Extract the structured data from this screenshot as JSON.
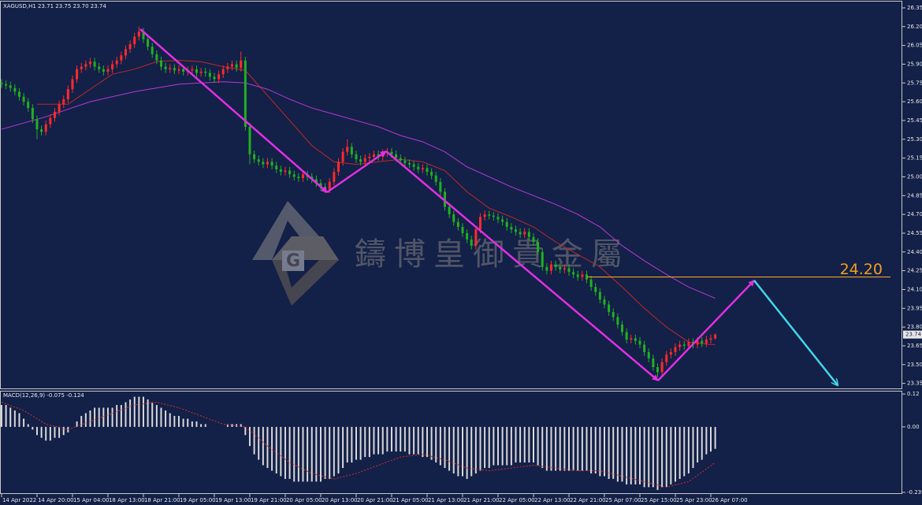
{
  "chart_data": [
    {
      "type": "candlestick",
      "title": "XAGUSD,H1  23.71 23.75 23.70 23.74",
      "watermark": "鑄博皇御貴金屬",
      "xlim": [
        -0.35,
        203.2
      ],
      "ylim": [
        23.31,
        26.4
      ],
      "yticks": [
        26.35,
        {
          "value": 26.2,
          "label": "26.20"
        },
        26.05,
        {
          "value": 25.9,
          "label": "25.90"
        },
        25.75,
        {
          "value": 25.6,
          "label": "25.60"
        },
        25.45,
        {
          "value": 25.3,
          "label": "25.30"
        },
        25.15,
        {
          "value": 25.0,
          "label": "25.00"
        },
        24.85,
        {
          "value": 24.7,
          "label": "24.70"
        },
        24.55,
        {
          "value": 24.4,
          "label": "24.40"
        },
        24.25,
        {
          "value": 24.1,
          "label": "24.10"
        },
        23.95,
        {
          "value": 23.8,
          "label": "23.80"
        },
        23.65,
        {
          "value": 23.5,
          "label": "23.50"
        },
        23.35
      ],
      "up_color": "#ff2a2a",
      "down_color": "#20b020",
      "open": [
        25.75,
        25.74,
        25.73,
        25.71,
        25.68,
        25.64,
        25.6,
        25.55,
        25.46,
        25.38,
        25.36,
        25.42,
        25.47,
        25.52,
        25.58,
        25.62,
        25.7,
        25.78,
        25.86,
        25.88,
        25.9,
        25.92,
        25.88,
        25.86,
        25.84,
        25.86,
        25.9,
        25.93,
        25.97,
        26.02,
        26.06,
        26.12,
        26.16,
        26.1,
        26.04,
        25.98,
        25.93,
        25.88,
        25.86,
        25.87,
        25.85,
        25.86,
        25.84,
        25.85,
        25.86,
        25.83,
        25.84,
        25.83,
        25.8,
        25.78,
        25.82,
        25.86,
        25.88,
        25.9,
        25.87,
        25.93,
        25.4,
        25.18,
        25.14,
        25.12,
        25.1,
        25.12,
        25.09,
        25.06,
        25.04,
        25.05,
        25.02,
        25.0,
        24.99,
        25.02,
        25.0,
        24.98,
        24.95,
        24.92,
        24.9,
        24.96,
        25.04,
        25.12,
        25.2,
        25.24,
        25.18,
        25.14,
        25.12,
        25.15,
        25.16,
        25.18,
        25.16,
        25.19,
        25.2,
        25.18,
        25.15,
        25.13,
        25.11,
        25.1,
        25.08,
        25.06,
        25.07,
        25.04,
        25.01,
        24.96,
        24.88,
        24.76,
        24.7,
        24.64,
        24.6,
        24.55,
        24.5,
        24.45,
        24.58,
        24.68,
        24.7,
        24.69,
        24.68,
        24.66,
        24.64,
        24.6,
        24.58,
        24.56,
        24.54,
        24.56,
        24.52,
        24.48,
        24.4,
        24.28,
        24.25,
        24.3,
        24.28,
        24.26,
        24.27,
        24.24,
        24.22,
        24.2,
        24.22,
        24.18,
        24.12,
        24.08,
        24.02,
        23.98,
        23.92,
        23.88,
        23.82,
        23.76,
        23.7,
        23.71,
        23.69,
        23.66,
        23.6,
        23.55,
        23.48,
        23.44,
        23.52,
        23.58,
        23.6,
        23.64,
        23.66,
        23.65,
        23.68,
        23.66,
        23.69,
        23.67,
        23.7,
        23.71
      ],
      "high": [
        25.78,
        25.77,
        25.76,
        25.74,
        25.71,
        25.67,
        25.63,
        25.58,
        25.49,
        25.41,
        25.45,
        25.5,
        25.55,
        25.61,
        25.65,
        25.73,
        25.81,
        25.89,
        25.91,
        25.93,
        25.95,
        25.95,
        25.91,
        25.89,
        25.89,
        25.93,
        25.96,
        26.0,
        26.05,
        26.09,
        26.15,
        26.2,
        26.19,
        26.13,
        26.07,
        26.01,
        25.96,
        25.91,
        25.9,
        25.9,
        25.89,
        25.89,
        25.88,
        25.89,
        25.89,
        25.87,
        25.87,
        25.86,
        25.83,
        25.85,
        25.89,
        25.91,
        25.93,
        25.93,
        26.0,
        25.96,
        25.43,
        25.21,
        25.17,
        25.15,
        25.15,
        25.15,
        25.12,
        25.09,
        25.08,
        25.08,
        25.05,
        25.03,
        25.05,
        25.05,
        25.03,
        25.01,
        24.98,
        24.95,
        24.99,
        25.07,
        25.15,
        25.23,
        25.3,
        25.27,
        25.21,
        25.17,
        25.18,
        25.19,
        25.21,
        25.21,
        25.22,
        25.23,
        25.23,
        25.21,
        25.18,
        25.16,
        25.14,
        25.13,
        25.11,
        25.1,
        25.1,
        25.07,
        25.04,
        24.99,
        24.91,
        24.79,
        24.73,
        24.67,
        24.63,
        24.58,
        24.53,
        24.61,
        24.71,
        24.73,
        24.73,
        24.72,
        24.71,
        24.69,
        24.67,
        24.63,
        24.61,
        24.59,
        24.59,
        24.59,
        24.55,
        24.51,
        24.43,
        24.31,
        24.33,
        24.33,
        24.31,
        24.3,
        24.3,
        24.27,
        24.25,
        24.25,
        24.25,
        24.21,
        24.15,
        24.11,
        24.05,
        24.01,
        23.95,
        23.91,
        23.85,
        23.79,
        23.74,
        23.74,
        23.72,
        23.69,
        23.63,
        23.58,
        23.51,
        23.55,
        23.61,
        23.63,
        23.67,
        23.69,
        23.69,
        23.71,
        23.71,
        23.72,
        23.72,
        23.73,
        23.74,
        23.75
      ],
      "low": [
        25.71,
        25.7,
        25.68,
        25.65,
        25.61,
        25.57,
        25.52,
        25.43,
        25.3,
        25.33,
        25.33,
        25.39,
        25.44,
        25.49,
        25.55,
        25.59,
        25.67,
        25.75,
        25.83,
        25.85,
        25.87,
        25.85,
        25.83,
        25.81,
        25.81,
        25.83,
        25.87,
        25.9,
        25.94,
        25.99,
        26.03,
        26.09,
        26.07,
        26.01,
        25.95,
        25.9,
        25.85,
        25.83,
        25.83,
        25.82,
        25.82,
        25.81,
        25.81,
        25.82,
        25.8,
        25.8,
        25.8,
        25.77,
        25.75,
        25.75,
        25.79,
        25.83,
        25.85,
        25.84,
        25.84,
        25.37,
        25.1,
        25.11,
        25.09,
        25.07,
        25.07,
        25.06,
        25.03,
        25.01,
        25.01,
        24.99,
        24.97,
        24.96,
        24.96,
        24.97,
        24.95,
        24.92,
        24.89,
        24.87,
        24.87,
        24.93,
        25.01,
        25.09,
        25.17,
        25.15,
        25.11,
        25.09,
        25.09,
        25.12,
        25.13,
        25.13,
        25.13,
        25.16,
        25.15,
        25.12,
        25.1,
        25.08,
        25.07,
        25.05,
        25.03,
        25.03,
        25.01,
        24.98,
        24.93,
        24.85,
        24.73,
        24.67,
        24.61,
        24.57,
        24.52,
        24.47,
        24.42,
        24.42,
        24.55,
        24.65,
        24.66,
        24.65,
        24.63,
        24.61,
        24.57,
        24.55,
        24.53,
        24.51,
        24.51,
        24.49,
        24.45,
        24.37,
        24.25,
        24.22,
        24.22,
        24.25,
        24.23,
        24.23,
        24.21,
        24.19,
        24.17,
        24.17,
        24.15,
        24.09,
        24.05,
        23.99,
        23.95,
        23.89,
        23.85,
        23.79,
        23.73,
        23.67,
        23.67,
        23.66,
        23.63,
        23.57,
        23.52,
        23.45,
        23.4,
        23.41,
        23.49,
        23.55,
        23.57,
        23.61,
        23.62,
        23.62,
        23.63,
        23.63,
        23.64,
        23.64,
        23.67,
        23.7
      ],
      "close": [
        25.74,
        25.73,
        25.71,
        25.68,
        25.64,
        25.6,
        25.55,
        25.46,
        25.38,
        25.36,
        25.42,
        25.47,
        25.52,
        25.58,
        25.62,
        25.7,
        25.78,
        25.86,
        25.88,
        25.9,
        25.92,
        25.88,
        25.86,
        25.84,
        25.86,
        25.9,
        25.93,
        25.97,
        26.02,
        26.06,
        26.12,
        26.16,
        26.1,
        26.04,
        25.98,
        25.93,
        25.88,
        25.86,
        25.87,
        25.85,
        25.86,
        25.84,
        25.85,
        25.86,
        25.83,
        25.84,
        25.83,
        25.8,
        25.78,
        25.82,
        25.86,
        25.88,
        25.9,
        25.87,
        25.93,
        25.4,
        25.18,
        25.14,
        25.12,
        25.1,
        25.12,
        25.09,
        25.06,
        25.04,
        25.05,
        25.02,
        25.0,
        24.99,
        25.02,
        25.0,
        24.98,
        24.95,
        24.92,
        24.9,
        24.96,
        25.04,
        25.12,
        25.2,
        25.24,
        25.18,
        25.14,
        25.12,
        25.15,
        25.16,
        25.18,
        25.16,
        25.19,
        25.2,
        25.18,
        25.15,
        25.13,
        25.11,
        25.1,
        25.08,
        25.06,
        25.07,
        25.04,
        25.01,
        24.96,
        24.88,
        24.76,
        24.7,
        24.64,
        24.6,
        24.55,
        24.5,
        24.45,
        24.58,
        24.68,
        24.7,
        24.69,
        24.68,
        24.66,
        24.64,
        24.6,
        24.58,
        24.56,
        24.54,
        24.56,
        24.52,
        24.48,
        24.4,
        24.28,
        24.25,
        24.3,
        24.28,
        24.26,
        24.27,
        24.24,
        24.22,
        24.2,
        24.22,
        24.18,
        24.12,
        24.08,
        24.02,
        23.98,
        23.92,
        23.88,
        23.82,
        23.76,
        23.7,
        23.71,
        23.69,
        23.66,
        23.6,
        23.55,
        23.48,
        23.44,
        23.52,
        23.58,
        23.6,
        23.64,
        23.66,
        23.65,
        23.68,
        23.66,
        23.69,
        23.67,
        23.7,
        23.71,
        23.74
      ],
      "lines": [
        {
          "color": "#c02828",
          "x": [
            8,
            15,
            20,
            25,
            30,
            35,
            40,
            45,
            50,
            55,
            60,
            65,
            70,
            75,
            80,
            85,
            90,
            95,
            100,
            105,
            110,
            115,
            120,
            125,
            130,
            135,
            140,
            145,
            150,
            155,
            160,
            161
          ],
          "values": [
            25.58,
            25.58,
            25.7,
            25.82,
            25.86,
            25.92,
            25.93,
            25.92,
            25.88,
            25.85,
            25.65,
            25.45,
            25.25,
            25.12,
            25.1,
            25.12,
            25.14,
            25.12,
            25.05,
            24.88,
            24.75,
            24.68,
            24.6,
            24.48,
            24.38,
            24.28,
            24.12,
            23.95,
            23.8,
            23.68,
            23.66,
            23.66
          ]
        },
        {
          "color": "#b63ad0",
          "x": [
            0,
            10,
            20,
            30,
            40,
            50,
            55,
            60,
            65,
            70,
            75,
            80,
            85,
            90,
            95,
            100,
            105,
            110,
            115,
            120,
            125,
            130,
            135,
            140,
            145,
            150,
            155,
            161
          ],
          "values": [
            25.38,
            25.48,
            25.6,
            25.68,
            25.74,
            25.76,
            25.75,
            25.7,
            25.62,
            25.55,
            25.5,
            25.45,
            25.4,
            25.33,
            25.28,
            25.2,
            25.08,
            25.0,
            24.92,
            24.85,
            24.78,
            24.7,
            24.6,
            24.45,
            24.33,
            24.22,
            24.12,
            24.03
          ]
        }
      ],
      "level": {
        "value": 24.2,
        "label": "24.20",
        "color": "#f0a020"
      },
      "last_price": 23.74
    },
    {
      "type": "macd",
      "title": "MACD(12,26,9) -0.075 -0.124",
      "xlim": [
        -0.35,
        203.2
      ],
      "ylim": [
        -0.242,
        0.129
      ],
      "yticks": [
        0.12,
        {
          "value": 0,
          "label": "0.00"
        },
        -0.239
      ],
      "xticks": [
        {
          "value": 0,
          "label": "14 Apr 2022"
        },
        {
          "value": 8,
          "label": "14 Apr 20:00"
        },
        {
          "value": 16,
          "label": "15 Apr 04:00"
        },
        {
          "value": 24,
          "label": "18 Apr 13:00"
        },
        {
          "value": 32,
          "label": "18 Apr 21:00"
        },
        {
          "value": 40,
          "label": "19 Apr 05:00"
        },
        {
          "value": 48,
          "label": "19 Apr 13:00"
        },
        {
          "value": 56,
          "label": "19 Apr 21:00"
        },
        {
          "value": 64,
          "label": "20 Apr 05:00"
        },
        {
          "value": 72,
          "label": "20 Apr 13:00"
        },
        {
          "value": 80,
          "label": "20 Apr 21:00"
        },
        {
          "value": 88,
          "label": "21 Apr 05:00"
        },
        {
          "value": 96,
          "label": "21 Apr 13:00"
        },
        {
          "value": 104,
          "label": "21 Apr 21:00"
        },
        {
          "value": 112,
          "label": "22 Apr 05:00"
        },
        {
          "value": 120,
          "label": "22 Apr 13:00"
        },
        {
          "value": 128,
          "label": "22 Apr 21:00"
        },
        {
          "value": 136,
          "label": "25 Apr 07:00"
        },
        {
          "value": 144,
          "label": "25 Apr 15:00"
        },
        {
          "value": 152,
          "label": "25 Apr 23:00"
        },
        {
          "value": 160,
          "label": "26 Apr 07:00"
        }
      ],
      "color": "#d8d8d8",
      "values": [
        0.08,
        0.08,
        0.07,
        0.06,
        0.05,
        0.03,
        0.01,
        -0.01,
        -0.03,
        -0.04,
        -0.05,
        -0.05,
        -0.04,
        -0.04,
        -0.03,
        -0.02,
        0.0,
        0.02,
        0.04,
        0.05,
        0.06,
        0.07,
        0.07,
        0.07,
        0.07,
        0.07,
        0.08,
        0.08,
        0.09,
        0.1,
        0.11,
        0.11,
        0.11,
        0.1,
        0.09,
        0.08,
        0.07,
        0.06,
        0.05,
        0.04,
        0.04,
        0.03,
        0.03,
        0.02,
        0.02,
        0.01,
        0.01,
        0.0,
        0.0,
        0.0,
        0.0,
        0.01,
        0.01,
        0.01,
        0.01,
        -0.03,
        -0.07,
        -0.1,
        -0.12,
        -0.14,
        -0.15,
        -0.16,
        -0.17,
        -0.18,
        -0.19,
        -0.19,
        -0.2,
        -0.2,
        -0.2,
        -0.2,
        -0.2,
        -0.2,
        -0.2,
        -0.19,
        -0.19,
        -0.18,
        -0.17,
        -0.15,
        -0.13,
        -0.13,
        -0.12,
        -0.12,
        -0.11,
        -0.11,
        -0.1,
        -0.1,
        -0.1,
        -0.09,
        -0.09,
        -0.09,
        -0.09,
        -0.09,
        -0.1,
        -0.1,
        -0.1,
        -0.11,
        -0.11,
        -0.12,
        -0.13,
        -0.14,
        -0.15,
        -0.16,
        -0.17,
        -0.18,
        -0.18,
        -0.19,
        -0.18,
        -0.17,
        -0.16,
        -0.15,
        -0.15,
        -0.14,
        -0.14,
        -0.14,
        -0.14,
        -0.14,
        -0.13,
        -0.13,
        -0.13,
        -0.13,
        -0.13,
        -0.14,
        -0.15,
        -0.16,
        -0.16,
        -0.16,
        -0.16,
        -0.16,
        -0.16,
        -0.16,
        -0.16,
        -0.16,
        -0.16,
        -0.17,
        -0.17,
        -0.18,
        -0.18,
        -0.19,
        -0.19,
        -0.2,
        -0.2,
        -0.21,
        -0.21,
        -0.21,
        -0.21,
        -0.22,
        -0.22,
        -0.22,
        -0.23,
        -0.22,
        -0.22,
        -0.21,
        -0.2,
        -0.19,
        -0.18,
        -0.17,
        -0.15,
        -0.13,
        -0.12,
        -0.1,
        -0.09,
        -0.08
      ],
      "signal": {
        "color": "#d03030",
        "x": [
          0,
          5,
          10,
          15,
          20,
          25,
          30,
          35,
          40,
          45,
          50,
          55,
          60,
          65,
          70,
          75,
          80,
          85,
          90,
          95,
          100,
          105,
          110,
          115,
          120,
          125,
          130,
          135,
          140,
          145,
          150,
          155,
          161
        ],
        "values": [
          0.09,
          0.06,
          0.01,
          -0.01,
          0.02,
          0.05,
          0.08,
          0.09,
          0.07,
          0.04,
          0.01,
          0.0,
          -0.07,
          -0.13,
          -0.17,
          -0.19,
          -0.17,
          -0.14,
          -0.11,
          -0.1,
          -0.12,
          -0.15,
          -0.16,
          -0.15,
          -0.14,
          -0.15,
          -0.16,
          -0.16,
          -0.18,
          -0.2,
          -0.22,
          -0.2,
          -0.13
        ]
      }
    }
  ]
}
